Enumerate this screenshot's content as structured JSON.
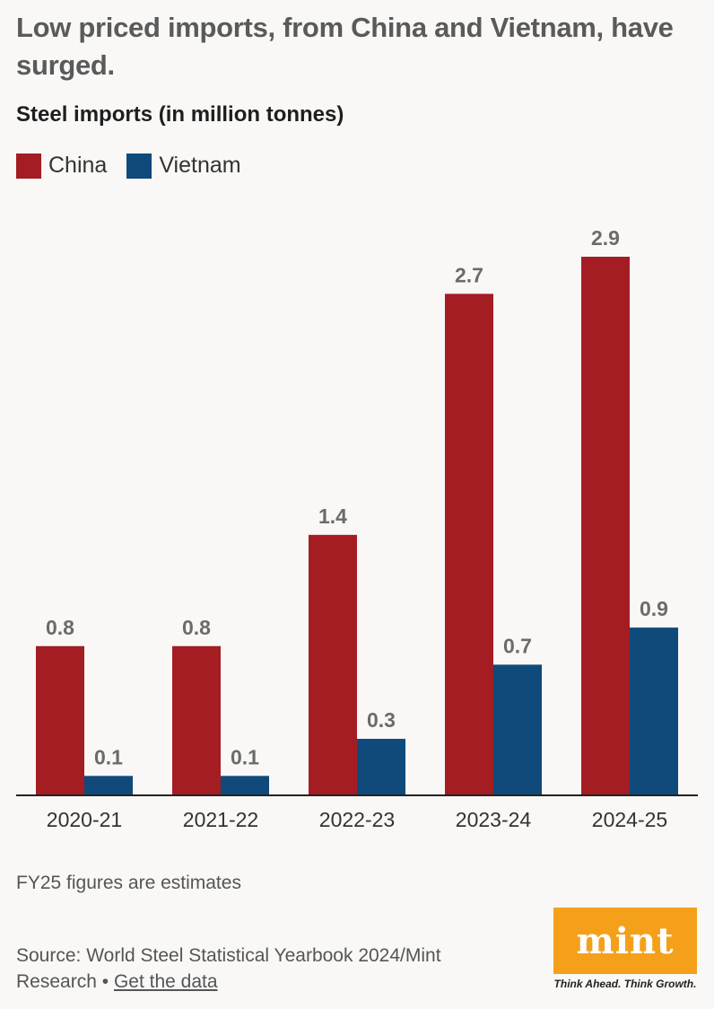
{
  "header": {
    "headline": "Low priced imports, from China and Vietnam, have surged.",
    "subtitle": "Steel imports (in million tonnes)"
  },
  "legend": {
    "china": "China",
    "vietnam": "Vietnam"
  },
  "colors": {
    "china": "#a31d23",
    "vietnam": "#0f4a7a",
    "label": "#6b6b6b"
  },
  "chart_data": {
    "type": "bar",
    "categories": [
      "2020-21",
      "2021-22",
      "2022-23",
      "2023-24",
      "2024-25"
    ],
    "series": [
      {
        "name": "China",
        "values": [
          0.8,
          0.8,
          1.4,
          2.7,
          2.9
        ]
      },
      {
        "name": "Vietnam",
        "values": [
          0.1,
          0.1,
          0.3,
          0.7,
          0.9
        ]
      }
    ],
    "title": "Steel imports (in million tonnes)",
    "xlabel": "",
    "ylabel": "",
    "ylim": [
      0,
      2.9
    ],
    "grid": false,
    "legend": "top-left",
    "data_labels": true
  },
  "footer": {
    "note": "FY25 figures are estimates",
    "source_text": "Source: World Steel Statistical Yearbook 2024/Mint Research",
    "separator": "•",
    "link_text": "Get the data"
  },
  "logo": {
    "text": "mint",
    "tagline": "Think Ahead. Think Growth."
  }
}
